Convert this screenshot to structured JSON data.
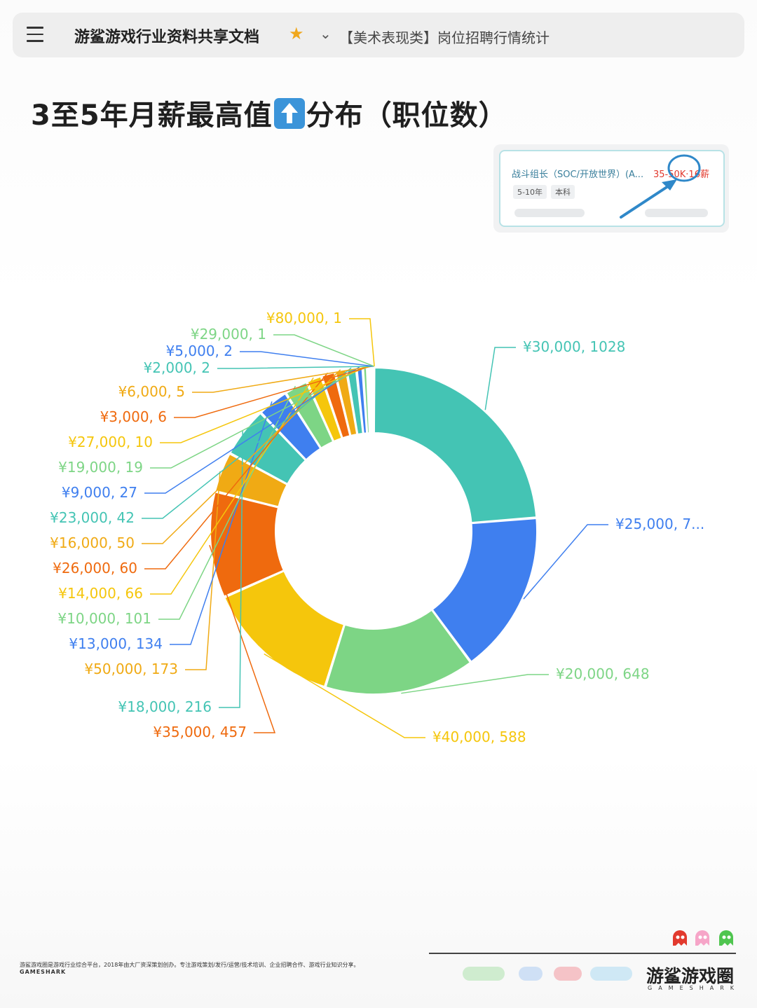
{
  "header": {
    "doc_title": "游鲨游戏行业资料共享文档",
    "breadcrumb": "【美术表现类】岗位招聘行情统计"
  },
  "page": {
    "title_before": "3至5年月薪最高值",
    "title_after": "分布（职位数）"
  },
  "sample_card": {
    "job": "战斗组长（SOC/开放世界）(A...",
    "salary": "35-50K·16薪",
    "tags": [
      "5-10年",
      "本科"
    ]
  },
  "chart_data": {
    "type": "pie",
    "donut": true,
    "title": "",
    "slices": [
      {
        "label": "¥30,000, 1028",
        "value": 1028,
        "color": "#44c4b4"
      },
      {
        "label": "¥25,000, 7...",
        "value": 700,
        "color": "#3f7fef"
      },
      {
        "label": "¥20,000, 648",
        "value": 648,
        "color": "#7dd585"
      },
      {
        "label": "¥40,000, 588",
        "value": 588,
        "color": "#f5c60c"
      },
      {
        "label": "¥35,000, 457",
        "value": 457,
        "color": "#ef6a0e"
      },
      {
        "label": "¥50,000, 173",
        "value": 173,
        "color": "#f0aa14"
      },
      {
        "label": "¥18,000, 216",
        "value": 216,
        "color": "#44c4b4"
      },
      {
        "label": "¥13,000, 134",
        "value": 134,
        "color": "#3f7fef"
      },
      {
        "label": "¥10,000, 101",
        "value": 101,
        "color": "#7dd585"
      },
      {
        "label": "¥14,000, 66",
        "value": 66,
        "color": "#f5c60c"
      },
      {
        "label": "¥26,000, 60",
        "value": 60,
        "color": "#ef6a0e"
      },
      {
        "label": "¥16,000, 50",
        "value": 50,
        "color": "#f0aa14"
      },
      {
        "label": "¥23,000, 42",
        "value": 42,
        "color": "#44c4b4"
      },
      {
        "label": "¥9,000, 27",
        "value": 27,
        "color": "#3f7fef"
      },
      {
        "label": "¥19,000, 19",
        "value": 19,
        "color": "#7dd585"
      },
      {
        "label": "¥27,000, 10",
        "value": 10,
        "color": "#f5c60c"
      },
      {
        "label": "¥3,000, 6",
        "value": 6,
        "color": "#ef6a0e"
      },
      {
        "label": "¥6,000, 5",
        "value": 5,
        "color": "#f0aa14"
      },
      {
        "label": "¥2,000, 2",
        "value": 2,
        "color": "#44c4b4"
      },
      {
        "label": "¥5,000, 2",
        "value": 2,
        "color": "#3f7fef"
      },
      {
        "label": "¥29,000, 1",
        "value": 1,
        "color": "#7dd585"
      },
      {
        "label": "¥80,000, 1",
        "value": 1,
        "color": "#f5c60c"
      }
    ]
  },
  "footer": {
    "note": "游鲨游戏圈是游戏行业综合平台，2018年由大厂资深策划创办。专注游戏策划/发行/运营/技术培训、企业招聘合作、游戏行业知识分享。",
    "sub": "GAMESHARK",
    "brand": "游鲨游戏圈",
    "brand_sub": "GAMESHARK"
  }
}
